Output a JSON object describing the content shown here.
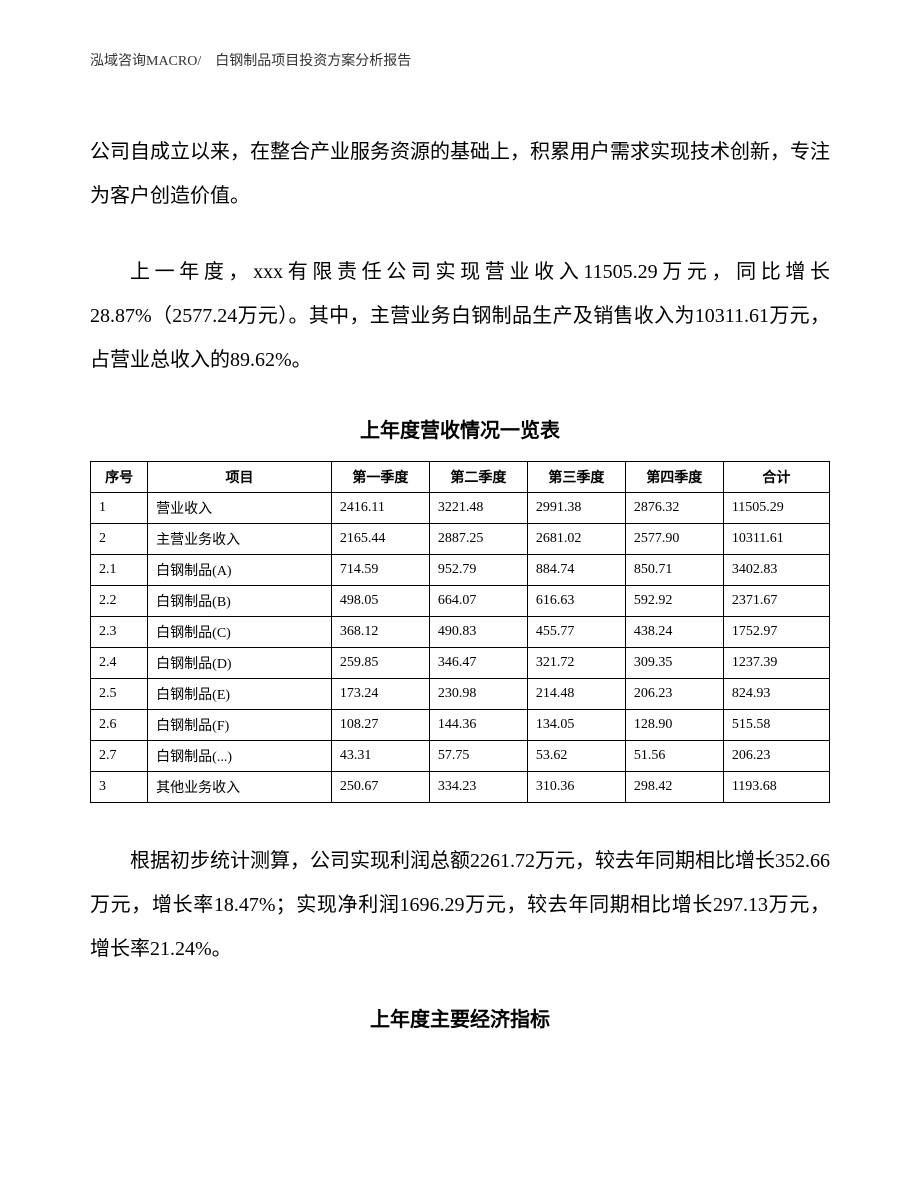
{
  "header": "泓域咨询MACRO/　白钢制品项目投资方案分析报告",
  "paragraphs": {
    "p1": "公司自成立以来，在整合产业服务资源的基础上，积累用户需求实现技术创新，专注为客户创造价值。",
    "p2": "上一年度，xxx有限责任公司实现营业收入11505.29万元，同比增长28.87%（2577.24万元）。其中，主营业务白钢制品生产及销售收入为10311.61万元，占营业总收入的89.62%。",
    "p3": "根据初步统计测算，公司实现利润总额2261.72万元，较去年同期相比增长352.66万元，增长率18.47%；实现净利润1696.29万元，较去年同期相比增长297.13万元，增长率21.24%。"
  },
  "table_title": "上年度营收情况一览表",
  "table2_title": "上年度主要经济指标",
  "table": {
    "columns": [
      "序号",
      "项目",
      "第一季度",
      "第二季度",
      "第三季度",
      "第四季度",
      "合计"
    ],
    "rows": [
      [
        "1",
        "营业收入",
        "2416.11",
        "3221.48",
        "2991.38",
        "2876.32",
        "11505.29"
      ],
      [
        "2",
        "主营业务收入",
        "2165.44",
        "2887.25",
        "2681.02",
        "2577.90",
        "10311.61"
      ],
      [
        "2.1",
        "白钢制品(A)",
        "714.59",
        "952.79",
        "884.74",
        "850.71",
        "3402.83"
      ],
      [
        "2.2",
        "白钢制品(B)",
        "498.05",
        "664.07",
        "616.63",
        "592.92",
        "2371.67"
      ],
      [
        "2.3",
        "白钢制品(C)",
        "368.12",
        "490.83",
        "455.77",
        "438.24",
        "1752.97"
      ],
      [
        "2.4",
        "白钢制品(D)",
        "259.85",
        "346.47",
        "321.72",
        "309.35",
        "1237.39"
      ],
      [
        "2.5",
        "白钢制品(E)",
        "173.24",
        "230.98",
        "214.48",
        "206.23",
        "824.93"
      ],
      [
        "2.6",
        "白钢制品(F)",
        "108.27",
        "144.36",
        "134.05",
        "128.90",
        "515.58"
      ],
      [
        "2.7",
        "白钢制品(...)",
        "43.31",
        "57.75",
        "53.62",
        "51.56",
        "206.23"
      ],
      [
        "3",
        "其他业务收入",
        "250.67",
        "334.23",
        "310.36",
        "298.42",
        "1193.68"
      ]
    ]
  }
}
